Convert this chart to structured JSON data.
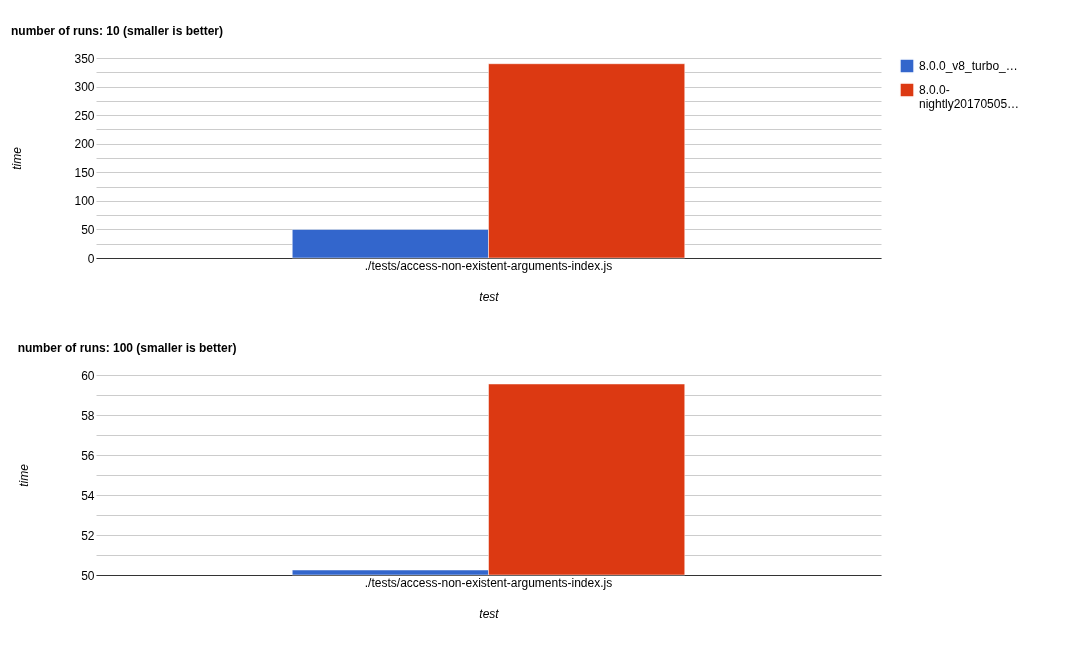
{
  "chart_data": [
    {
      "type": "bar",
      "title": "number of runs: 10 (smaller is better)",
      "xlabel": "test",
      "ylabel": "time",
      "categories": [
        "./tests/access-non-existent-arguments-index.js"
      ],
      "series": [
        {
          "name": "8.0.0_v8_turbo_…",
          "color": "#3366cc",
          "values": [
            50
          ]
        },
        {
          "name": "8.0.0-\nnightly20170505…",
          "color": "#dc3912",
          "values": [
            340
          ]
        }
      ],
      "ylim": [
        0,
        350
      ],
      "yticks": [
        0,
        {
          "value": 25,
          "label": null
        },
        50,
        {
          "value": 75,
          "label": null
        },
        100,
        {
          "value": 125,
          "label": null
        },
        150,
        {
          "value": 175,
          "label": null
        },
        200,
        {
          "value": 225,
          "label": null
        },
        250,
        {
          "value": 275,
          "label": null
        },
        300,
        {
          "value": 325,
          "label": null
        },
        350
      ],
      "grid": "y",
      "legend": "top right"
    },
    {
      "type": "bar",
      "title": "number of runs: 100 (smaller is better)",
      "xlabel": "test",
      "ylabel": "time",
      "categories": [
        "./tests/access-non-existent-arguments-index.js"
      ],
      "series": [
        {
          "name": "8.0.0_v8_turbo_…",
          "color": "#3366cc",
          "values": [
            50.25
          ]
        },
        {
          "name": "8.0.0-\nnightly20170505…",
          "color": "#dc3912",
          "values": [
            59.55
          ]
        }
      ],
      "ylim": [
        50,
        60
      ],
      "yticks": [
        50,
        {
          "value": 51,
          "label": null
        },
        52,
        {
          "value": 53,
          "label": null
        },
        54,
        {
          "value": 55,
          "label": null
        },
        56,
        {
          "value": 57,
          "label": null
        },
        58,
        {
          "value": 59,
          "label": null
        },
        60
      ],
      "grid": "y",
      "legend": "top right"
    }
  ]
}
